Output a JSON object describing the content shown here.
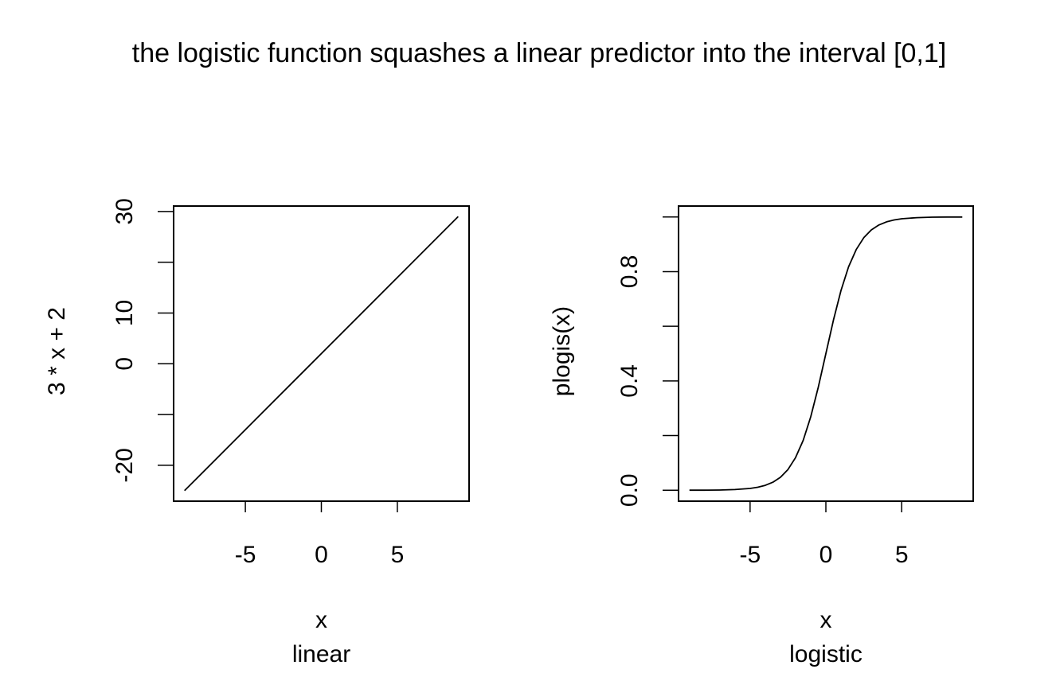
{
  "figure": {
    "title": "the logistic function squashes a linear predictor into the interval [0,1]"
  },
  "chart_data": [
    {
      "type": "line",
      "function": "3 * x + 2",
      "xlabel": "x",
      "ylabel": "3 * x + 2",
      "sublabel": "linear",
      "xlim": [
        -9.72,
        9.72
      ],
      "ylim": [
        -27.07,
        31.07
      ],
      "xticks": [
        -5,
        0,
        5
      ],
      "xtick_labels": [
        "-5",
        "0",
        "5"
      ],
      "yticks": [
        -20,
        -10,
        0,
        10,
        20,
        30
      ],
      "ytick_labels": [
        "-20",
        "",
        "0",
        "10",
        "",
        "30"
      ],
      "x": [
        -9,
        -4.5,
        0,
        4.5,
        9
      ],
      "y": [
        -25,
        -11.5,
        2,
        15.5,
        29
      ]
    },
    {
      "type": "line",
      "function": "plogis(x)",
      "xlabel": "x",
      "ylabel": "plogis(x)",
      "sublabel": "logistic",
      "xlim": [
        -9.72,
        9.72
      ],
      "ylim": [
        -0.04,
        1.04
      ],
      "xticks": [
        -5,
        0,
        5
      ],
      "xtick_labels": [
        "-5",
        "0",
        "5"
      ],
      "yticks": [
        0.0,
        0.2,
        0.4,
        0.6,
        0.8,
        1.0
      ],
      "ytick_labels": [
        "0.0",
        "",
        "0.4",
        "",
        "0.8",
        ""
      ],
      "x": [
        -9,
        -8,
        -7,
        -6,
        -5,
        -4.5,
        -4,
        -3.5,
        -3,
        -2.5,
        -2,
        -1.5,
        -1,
        -0.5,
        0,
        0.5,
        1,
        1.5,
        2,
        2.5,
        3,
        3.5,
        4,
        4.5,
        5,
        6,
        7,
        8,
        9
      ],
      "y": [
        0.0001,
        0.0003,
        0.0009,
        0.0025,
        0.0067,
        0.011,
        0.018,
        0.0293,
        0.0474,
        0.0759,
        0.1192,
        0.1824,
        0.2689,
        0.3775,
        0.5,
        0.6225,
        0.7311,
        0.8176,
        0.8808,
        0.9241,
        0.9526,
        0.9707,
        0.982,
        0.989,
        0.9933,
        0.9975,
        0.9991,
        0.9997,
        0.9999
      ]
    }
  ]
}
